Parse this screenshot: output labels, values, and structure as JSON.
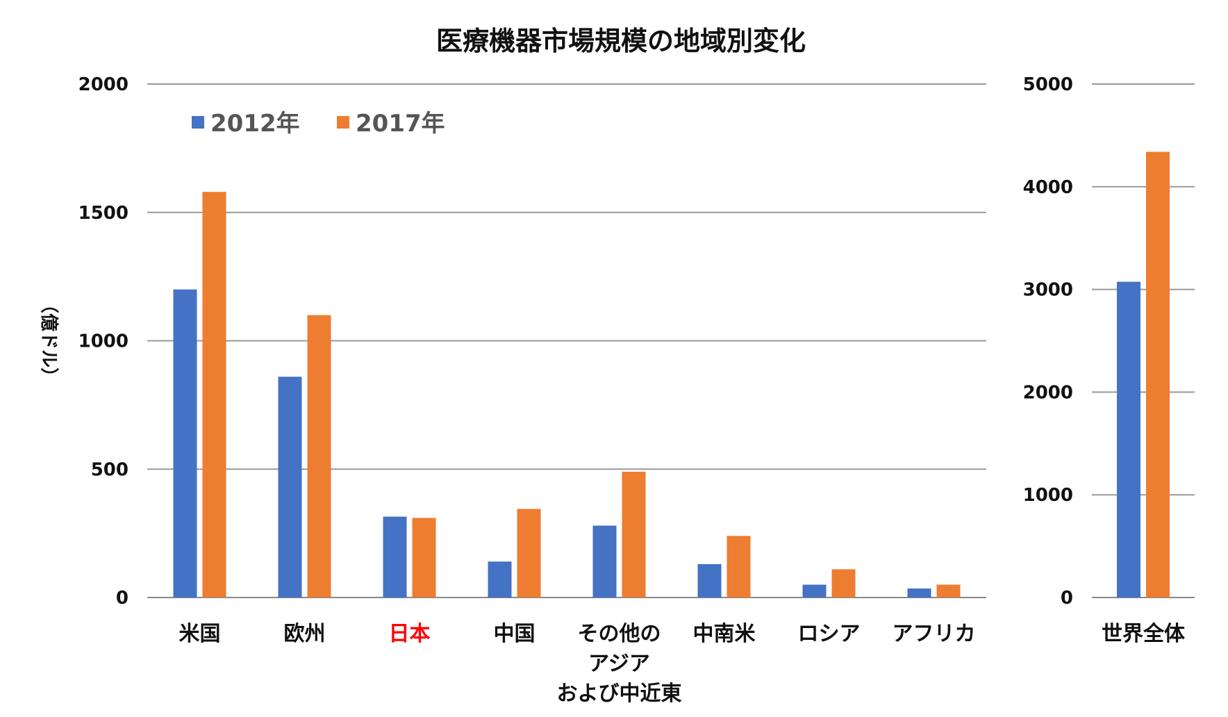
{
  "chart_data": {
    "type": "bar",
    "title": "医療機器市場規模の地域別変化",
    "ylabel": "（億ドル）",
    "categories": [
      "米国",
      "欧州",
      "日本",
      "中国",
      "その他の\nアジア\nおよび中近東",
      "中南米",
      "ロシア",
      "アフリカ"
    ],
    "highlight_category": "日本",
    "highlight_color": "#ff0000",
    "ylim": [
      0,
      2000
    ],
    "yticks": [
      0,
      500,
      1000,
      1500,
      2000
    ],
    "series": [
      {
        "name": "2012年",
        "color": "#4472c4",
        "values": [
          1200,
          860,
          315,
          140,
          280,
          130,
          50,
          35
        ]
      },
      {
        "name": "2017年",
        "color": "#ed7d31",
        "values": [
          1580,
          1100,
          310,
          345,
          490,
          240,
          110,
          50
        ]
      }
    ],
    "secondary": {
      "categories": [
        "世界全体"
      ],
      "ylim": [
        0,
        5000
      ],
      "yticks": [
        0,
        1000,
        2000,
        3000,
        4000,
        5000
      ],
      "series": [
        {
          "name": "2012年",
          "color": "#4472c4",
          "values": [
            3075
          ]
        },
        {
          "name": "2017年",
          "color": "#ed7d31",
          "values": [
            4340
          ]
        }
      ]
    },
    "grid": true,
    "legend_position": "top-left"
  }
}
